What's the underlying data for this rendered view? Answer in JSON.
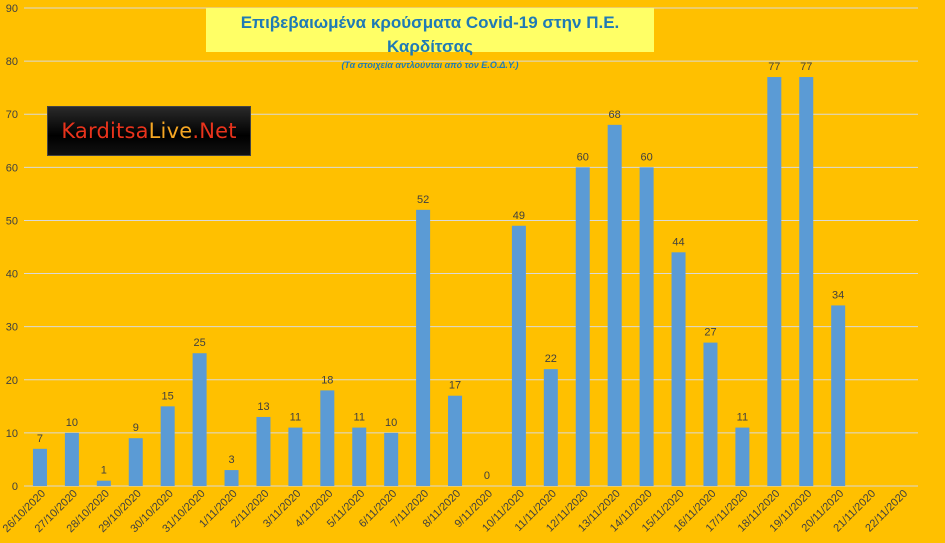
{
  "chart_data": {
    "type": "bar",
    "title": "Επιβεβαιωμένα κρούσματα Covid-19 στην Π.Ε. Καρδίτσας",
    "subtitle": "(Τα στοιχεία αντλούνται από τον Ε.Ο.Δ.Υ.)",
    "categories": [
      "26/10/2020",
      "27/10/2020",
      "28/10/2020",
      "29/10/2020",
      "30/10/2020",
      "31/10/2020",
      "1/11/2020",
      "2/11/2020",
      "3/11/2020",
      "4/11/2020",
      "5/11/2020",
      "6/11/2020",
      "7/11/2020",
      "8/11/2020",
      "9/11/2020",
      "10/11/2020",
      "11/11/2020",
      "12/11/2020",
      "13/11/2020",
      "14/11/2020",
      "15/11/2020",
      "16/11/2020",
      "17/11/2020",
      "18/11/2020",
      "19/11/2020",
      "20/11/2020",
      "21/11/2020",
      "22/11/2020"
    ],
    "values": [
      7,
      10,
      1,
      9,
      15,
      25,
      3,
      13,
      11,
      18,
      11,
      10,
      52,
      17,
      0,
      49,
      22,
      60,
      68,
      60,
      44,
      27,
      11,
      77,
      77,
      34,
      null,
      null
    ],
    "labels": [
      "7",
      "10",
      "1",
      "9",
      "15",
      "25",
      "3",
      "13",
      "11",
      "18",
      "11",
      "10",
      "52",
      "17",
      "0",
      "49",
      "22",
      "60",
      "68",
      "60",
      "44",
      "27",
      "11",
      "77",
      "77",
      "34",
      "",
      ""
    ],
    "ylim": [
      0,
      90
    ],
    "yticks": [
      0,
      10,
      20,
      30,
      40,
      50,
      60,
      70,
      80,
      90
    ],
    "ytick_labels": [
      "0",
      "10",
      "20",
      "30",
      "40",
      "50",
      "60",
      "70",
      "80",
      "90"
    ],
    "grid": true,
    "xlabel": "",
    "ylabel": ""
  },
  "logo": {
    "part1": "Karditsa",
    "part2": "Live",
    "part3": ".Net"
  },
  "colors": {
    "background": "#ffc000",
    "bar": "#5b9bd5",
    "grid": "#d9d9d9",
    "title_bg": "#ffff66",
    "title_text": "#1f7ab5",
    "axis_text": "#404040"
  }
}
